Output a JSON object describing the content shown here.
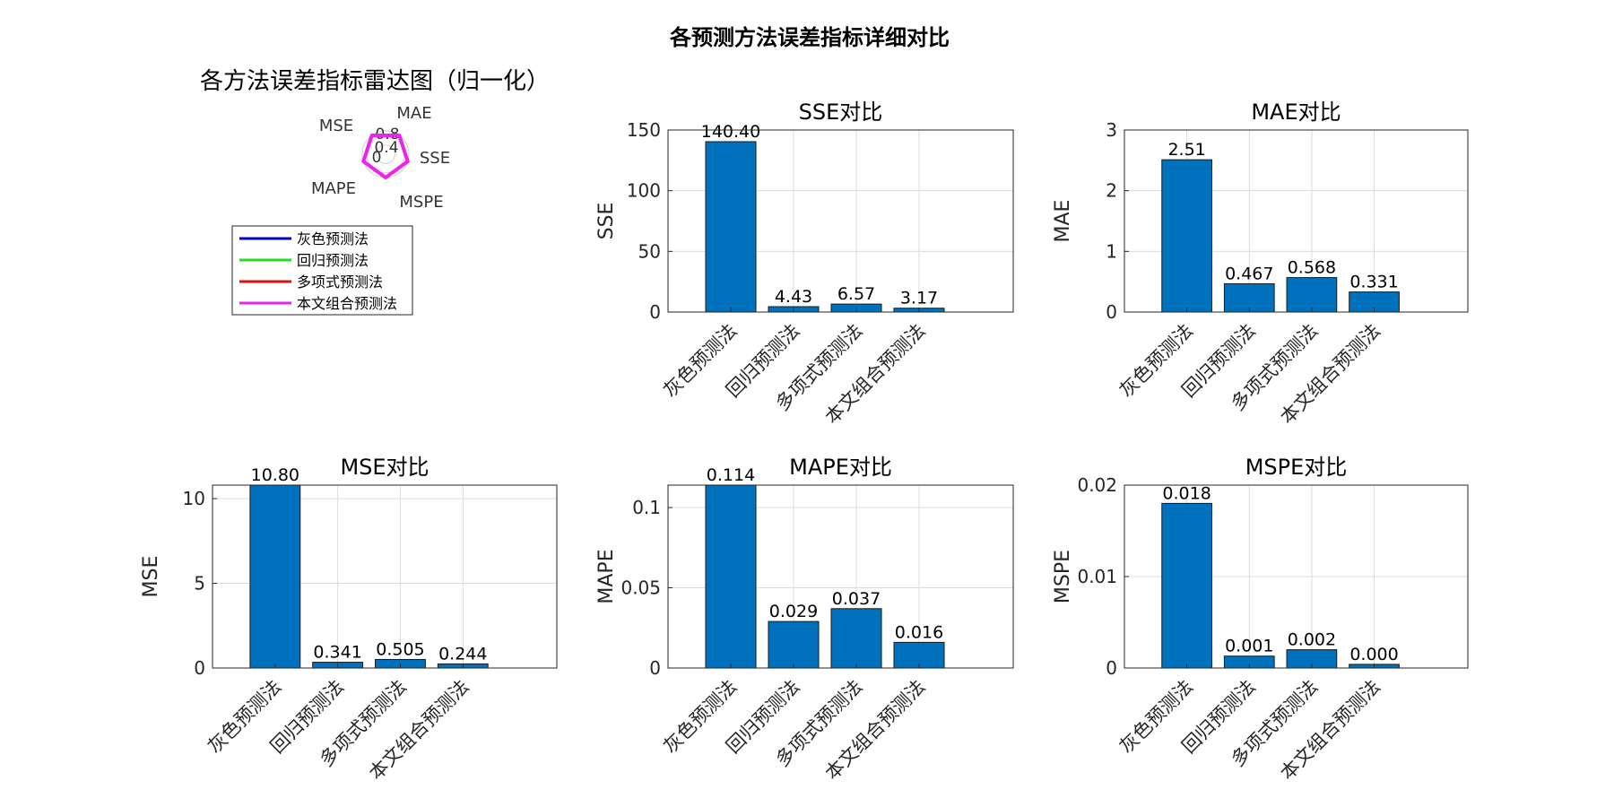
{
  "figure_title": "各预测方法误差指标详细对比",
  "radar": {
    "title": "各方法误差指标雷达图（归一化）",
    "axes": [
      "MAE",
      "SSE",
      "MSPE",
      "MAPE",
      "MSE"
    ],
    "rticks": [
      "0",
      "0.4",
      "0.8"
    ],
    "series": [
      {
        "name": "灰色预测法",
        "color": "#0000cc",
        "values": [
          1,
          1,
          1,
          1,
          1
        ]
      },
      {
        "name": "回归预测法",
        "color": "#22dd22",
        "values": [
          1,
          1,
          1,
          1,
          1
        ]
      },
      {
        "name": "多项式预测法",
        "color": "#dd1111",
        "values": [
          1,
          1,
          1,
          1,
          1
        ]
      },
      {
        "name": "本文组合预测法",
        "color": "#ee22ee",
        "values": [
          1,
          1,
          1,
          1,
          1
        ]
      }
    ]
  },
  "chart_data": [
    {
      "type": "bar",
      "title": "SSE对比",
      "ylabel": "SSE",
      "categories": [
        "灰色预测法",
        "回归预测法",
        "多项式预测法",
        "本文组合预测法"
      ],
      "values": [
        140.4,
        4.43,
        6.57,
        3.17
      ],
      "labels": [
        "140.40",
        "4.43",
        "6.57",
        "3.17"
      ],
      "ylim": [
        0,
        150
      ],
      "yticks": [
        0,
        50,
        100,
        150
      ],
      "ytick_labels": [
        "0",
        "50",
        "100",
        "150"
      ],
      "color": "#0072bd",
      "grid": true
    },
    {
      "type": "bar",
      "title": "MAE对比",
      "ylabel": "MAE",
      "categories": [
        "灰色预测法",
        "回归预测法",
        "多项式预测法",
        "本文组合预测法"
      ],
      "values": [
        2.51,
        0.467,
        0.568,
        0.331
      ],
      "labels": [
        "2.51",
        "0.467",
        "0.568",
        "0.331"
      ],
      "ylim": [
        0,
        3
      ],
      "yticks": [
        0,
        1,
        2,
        3
      ],
      "ytick_labels": [
        "0",
        "1",
        "2",
        "3"
      ],
      "color": "#0072bd",
      "grid": true
    },
    {
      "type": "bar",
      "title": "MSE对比",
      "ylabel": "MSE",
      "categories": [
        "灰色预测法",
        "回归预测法",
        "多项式预测法",
        "本文组合预测法"
      ],
      "values": [
        10.8,
        0.341,
        0.505,
        0.244
      ],
      "labels": [
        "10.80",
        "0.341",
        "0.505",
        "0.244"
      ],
      "ylim": [
        0,
        10.8
      ],
      "yticks": [
        0,
        5,
        10
      ],
      "ytick_labels": [
        "0",
        "5",
        "10"
      ],
      "color": "#0072bd",
      "grid": true
    },
    {
      "type": "bar",
      "title": "MAPE对比",
      "ylabel": "MAPE",
      "categories": [
        "灰色预测法",
        "回归预测法",
        "多项式预测法",
        "本文组合预测法"
      ],
      "values": [
        0.114,
        0.029,
        0.037,
        0.016
      ],
      "labels": [
        "0.114",
        "0.029",
        "0.037",
        "0.016"
      ],
      "ylim": [
        0,
        0.114
      ],
      "yticks": [
        0,
        0.05,
        0.1
      ],
      "ytick_labels": [
        "0",
        "0.05",
        "0.1"
      ],
      "color": "#0072bd",
      "grid": true
    },
    {
      "type": "bar",
      "title": "MSPE对比",
      "ylabel": "MSPE",
      "categories": [
        "灰色预测法",
        "回归预测法",
        "多项式预测法",
        "本文组合预测法"
      ],
      "values": [
        0.018,
        0.0013,
        0.002,
        0.0004
      ],
      "labels": [
        "0.018",
        "0.001",
        "0.002",
        "0.000"
      ],
      "ylim": [
        0,
        0.02
      ],
      "yticks": [
        0,
        0.01,
        0.02
      ],
      "ytick_labels": [
        "0",
        "0.01",
        "0.02"
      ],
      "color": "#0072bd",
      "grid": true
    }
  ]
}
